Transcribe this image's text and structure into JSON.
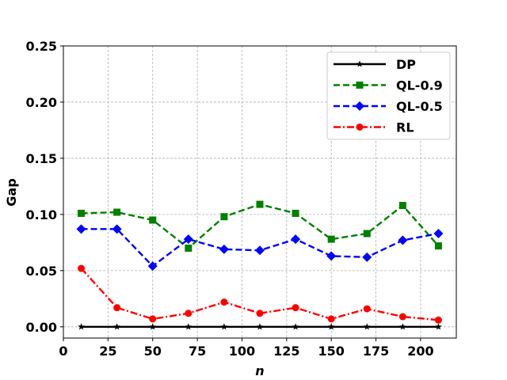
{
  "chart_data": {
    "type": "line",
    "title": "",
    "xlabel": "n",
    "ylabel": "Gap",
    "xlim": [
      0,
      220
    ],
    "ylim": [
      -0.01,
      0.25
    ],
    "x_ticks": [
      0,
      25,
      50,
      75,
      100,
      125,
      150,
      175,
      200
    ],
    "x_tick_labels": [
      "0",
      "25",
      "50",
      "75",
      "100",
      "125",
      "150",
      "175",
      "200"
    ],
    "y_ticks": [
      0.0,
      0.05,
      0.1,
      0.15,
      0.2,
      0.25
    ],
    "y_tick_labels": [
      "0.00",
      "0.05",
      "0.10",
      "0.15",
      "0.20",
      "0.25"
    ],
    "grid": true,
    "legend_position": "top-right",
    "x": [
      10,
      30,
      50,
      70,
      90,
      110,
      130,
      150,
      170,
      190,
      210
    ],
    "series": [
      {
        "name": "DP",
        "color": "#000000",
        "marker": "star",
        "dash": "solid",
        "values": [
          0,
          0,
          0,
          0,
          0,
          0,
          0,
          0,
          0,
          0,
          0
        ]
      },
      {
        "name": "QL-0.9",
        "color": "#008000",
        "marker": "square",
        "dash": "dashed",
        "values": [
          0.101,
          0.102,
          0.095,
          0.07,
          0.098,
          0.109,
          0.101,
          0.078,
          0.083,
          0.108,
          0.072
        ]
      },
      {
        "name": "QL-0.5",
        "color": "#0000ff",
        "marker": "diamond",
        "dash": "dashed",
        "values": [
          0.087,
          0.087,
          0.054,
          0.078,
          0.069,
          0.068,
          0.078,
          0.063,
          0.062,
          0.077,
          0.083
        ]
      },
      {
        "name": "RL",
        "color": "#ff0000",
        "marker": "circle",
        "dash": "dashdot",
        "values": [
          0.052,
          0.017,
          0.007,
          0.012,
          0.022,
          0.012,
          0.017,
          0.007,
          0.016,
          0.009,
          0.006
        ]
      }
    ]
  }
}
